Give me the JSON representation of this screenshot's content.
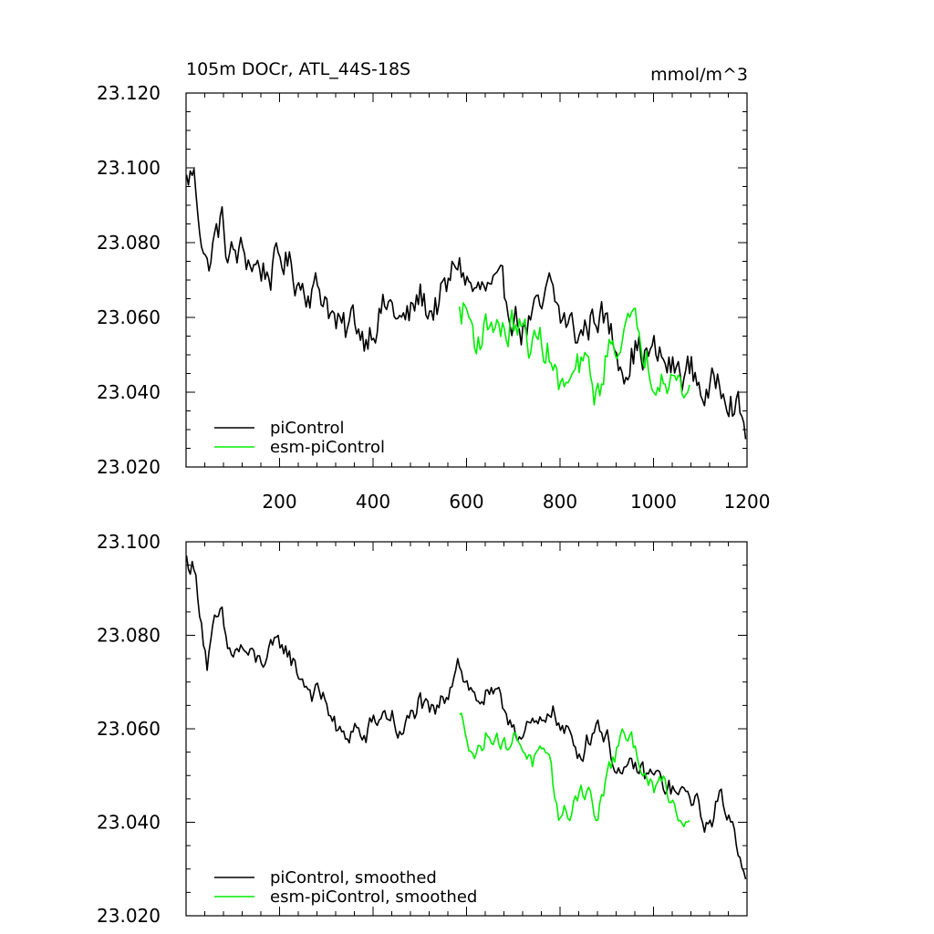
{
  "colors": {
    "picontrol": "#000000",
    "esm_picontrol": "#00ee00"
  },
  "chart_data": [
    {
      "type": "line",
      "title": "105m DOCr, ATL_44S-18S",
      "units": "mmol/m^3",
      "xlim": [
        0,
        1200
      ],
      "ylim": [
        23.02,
        23.12
      ],
      "x_ticks": [
        "200",
        "400",
        "600",
        "800",
        "1000",
        "1200"
      ],
      "y_ticks": [
        "23.020",
        "23.040",
        "23.060",
        "23.080",
        "23.100",
        "23.120"
      ],
      "legend": [
        "piControl",
        "esm-piControl"
      ],
      "series": [
        {
          "name": "piControl",
          "color": "#000000",
          "x_start": 1,
          "x_end": 1200,
          "anchors": [
            [
              0,
              23.096
            ],
            [
              15,
              23.099
            ],
            [
              30,
              23.086
            ],
            [
              45,
              23.073
            ],
            [
              60,
              23.08
            ],
            [
              75,
              23.086
            ],
            [
              90,
              23.076
            ],
            [
              120,
              23.077
            ],
            [
              150,
              23.074
            ],
            [
              180,
              23.072
            ],
            [
              210,
              23.076
            ],
            [
              240,
              23.07
            ],
            [
              270,
              23.068
            ],
            [
              300,
              23.066
            ],
            [
              320,
              23.058
            ],
            [
              340,
              23.055
            ],
            [
              360,
              23.06
            ],
            [
              380,
              23.055
            ],
            [
              400,
              23.059
            ],
            [
              420,
              23.062
            ],
            [
              440,
              23.063
            ],
            [
              460,
              23.058
            ],
            [
              480,
              23.06
            ],
            [
              500,
              23.066
            ],
            [
              520,
              23.062
            ],
            [
              540,
              23.064
            ],
            [
              560,
              23.067
            ],
            [
              580,
              23.076
            ],
            [
              600,
              23.07
            ],
            [
              620,
              23.066
            ],
            [
              640,
              23.067
            ],
            [
              660,
              23.066
            ],
            [
              680,
              23.065
            ],
            [
              700,
              23.062
            ],
            [
              720,
              23.057
            ],
            [
              740,
              23.06
            ],
            [
              760,
              23.06
            ],
            [
              780,
              23.068
            ],
            [
              800,
              23.06
            ],
            [
              820,
              23.058
            ],
            [
              840,
              23.055
            ],
            [
              860,
              23.058
            ],
            [
              880,
              23.062
            ],
            [
              900,
              23.058
            ],
            [
              920,
              23.052
            ],
            [
              940,
              23.048
            ],
            [
              960,
              23.052
            ],
            [
              980,
              23.05
            ],
            [
              1000,
              23.05
            ],
            [
              1020,
              23.048
            ],
            [
              1040,
              23.046
            ],
            [
              1060,
              23.045
            ],
            [
              1080,
              23.046
            ],
            [
              1100,
              23.042
            ],
            [
              1120,
              23.038
            ],
            [
              1140,
              23.045
            ],
            [
              1160,
              23.042
            ],
            [
              1180,
              23.035
            ],
            [
              1200,
              23.028
            ]
          ],
          "noise": 0.0045
        },
        {
          "name": "esm-piControl",
          "color": "#00ee00",
          "x_start": 585,
          "x_end": 1080,
          "anchors": [
            [
              585,
              23.061
            ],
            [
              600,
              23.062
            ],
            [
              620,
              23.054
            ],
            [
              640,
              23.057
            ],
            [
              660,
              23.06
            ],
            [
              680,
              23.055
            ],
            [
              700,
              23.058
            ],
            [
              720,
              23.056
            ],
            [
              740,
              23.052
            ],
            [
              760,
              23.054
            ],
            [
              780,
              23.05
            ],
            [
              800,
              23.04
            ],
            [
              820,
              23.042
            ],
            [
              840,
              23.046
            ],
            [
              860,
              23.046
            ],
            [
              880,
              23.038
            ],
            [
              900,
              23.05
            ],
            [
              920,
              23.054
            ],
            [
              940,
              23.058
            ],
            [
              960,
              23.056
            ],
            [
              980,
              23.052
            ],
            [
              1000,
              23.045
            ],
            [
              1020,
              23.048
            ],
            [
              1040,
              23.045
            ],
            [
              1060,
              23.04
            ],
            [
              1080,
              23.042
            ]
          ],
          "noise": 0.0042
        }
      ]
    },
    {
      "type": "line",
      "title": "",
      "units": "",
      "xlim": [
        0,
        1200
      ],
      "ylim": [
        23.02,
        23.1
      ],
      "x_ticks": [],
      "y_ticks": [
        "23.020",
        "23.040",
        "23.060",
        "23.080",
        "23.100"
      ],
      "legend": [
        "piControl, smoothed",
        "esm-piControl, smoothed"
      ],
      "series": [
        {
          "name": "piControl, smoothed",
          "color": "#000000",
          "x_start": 1,
          "x_end": 1200,
          "anchors": [
            [
              0,
              23.096
            ],
            [
              15,
              23.095
            ],
            [
              30,
              23.086
            ],
            [
              45,
              23.074
            ],
            [
              60,
              23.081
            ],
            [
              75,
              23.084
            ],
            [
              90,
              23.076
            ],
            [
              120,
              23.077
            ],
            [
              150,
              23.074
            ],
            [
              180,
              23.076
            ],
            [
              210,
              23.078
            ],
            [
              240,
              23.072
            ],
            [
              270,
              23.068
            ],
            [
              300,
              23.066
            ],
            [
              320,
              23.06
            ],
            [
              340,
              23.057
            ],
            [
              360,
              23.061
            ],
            [
              380,
              23.057
            ],
            [
              400,
              23.061
            ],
            [
              420,
              23.063
            ],
            [
              440,
              23.063
            ],
            [
              460,
              23.058
            ],
            [
              480,
              23.062
            ],
            [
              500,
              23.066
            ],
            [
              520,
              23.062
            ],
            [
              540,
              23.064
            ],
            [
              560,
              23.068
            ],
            [
              580,
              23.076
            ],
            [
              600,
              23.07
            ],
            [
              620,
              23.066
            ],
            [
              640,
              23.067
            ],
            [
              660,
              23.066
            ],
            [
              680,
              23.064
            ],
            [
              700,
              23.062
            ],
            [
              720,
              23.058
            ],
            [
              740,
              23.06
            ],
            [
              760,
              23.06
            ],
            [
              780,
              23.066
            ],
            [
              800,
              23.06
            ],
            [
              820,
              23.058
            ],
            [
              840,
              23.055
            ],
            [
              860,
              23.058
            ],
            [
              880,
              23.062
            ],
            [
              900,
              23.058
            ],
            [
              920,
              23.052
            ],
            [
              940,
              23.049
            ],
            [
              960,
              23.052
            ],
            [
              980,
              23.05
            ],
            [
              1000,
              23.05
            ],
            [
              1020,
              23.048
            ],
            [
              1040,
              23.047
            ],
            [
              1060,
              23.045
            ],
            [
              1080,
              23.046
            ],
            [
              1100,
              23.042
            ],
            [
              1120,
              23.039
            ],
            [
              1140,
              23.045
            ],
            [
              1160,
              23.042
            ],
            [
              1180,
              23.036
            ],
            [
              1200,
              23.029
            ]
          ],
          "noise": 0.0022
        },
        {
          "name": "esm-piControl, smoothed",
          "color": "#00ee00",
          "x_start": 585,
          "x_end": 1080,
          "anchors": [
            [
              585,
              23.062
            ],
            [
              600,
              23.06
            ],
            [
              620,
              23.054
            ],
            [
              640,
              23.058
            ],
            [
              660,
              23.06
            ],
            [
              680,
              23.056
            ],
            [
              700,
              23.058
            ],
            [
              720,
              23.057
            ],
            [
              740,
              23.053
            ],
            [
              760,
              23.054
            ],
            [
              780,
              23.05
            ],
            [
              800,
              23.041
            ],
            [
              820,
              23.042
            ],
            [
              840,
              23.047
            ],
            [
              860,
              23.047
            ],
            [
              880,
              23.04
            ],
            [
              900,
              23.05
            ],
            [
              920,
              23.055
            ],
            [
              940,
              23.058
            ],
            [
              960,
              23.056
            ],
            [
              980,
              23.052
            ],
            [
              1000,
              23.046
            ],
            [
              1020,
              23.049
            ],
            [
              1040,
              23.045
            ],
            [
              1060,
              23.04
            ],
            [
              1080,
              23.043
            ]
          ],
          "noise": 0.002
        }
      ]
    }
  ]
}
